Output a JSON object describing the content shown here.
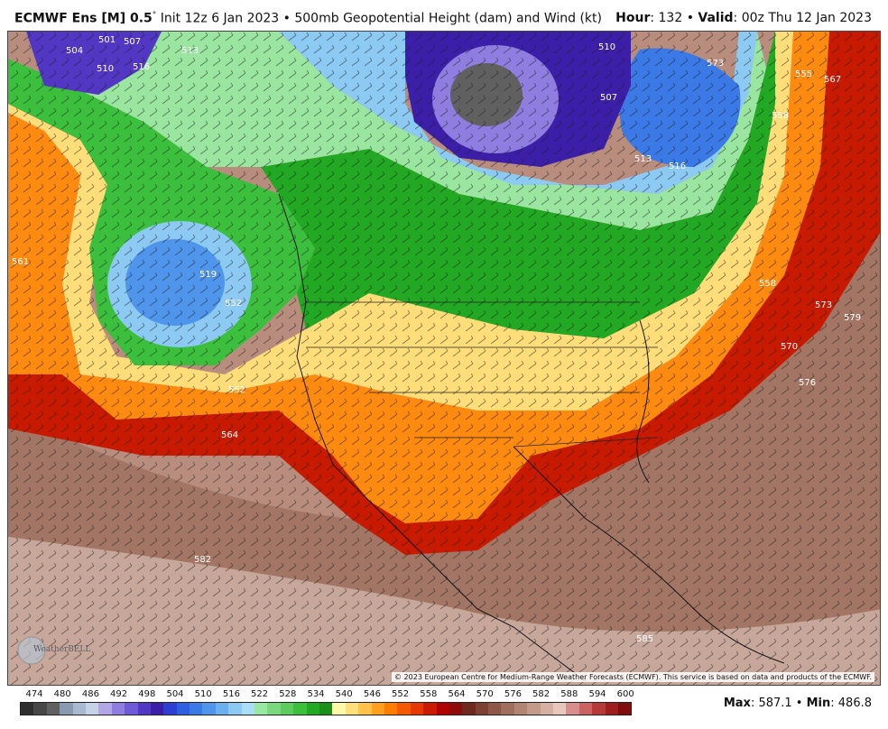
{
  "header": {
    "model": "ECMWF Ens [M] 0.5",
    "degree": "°",
    "init": " Init 12z 6 Jan 2023 • 500mb Geopotential Height (dam) and Wind (kt)",
    "hour_label": "Hour",
    "hour_value": ": 132 • ",
    "valid_label": "Valid",
    "valid_value": ": 00z Thu 12 Jan 2023"
  },
  "map": {
    "contour_labels": [
      "501",
      "507",
      "504",
      "510",
      "516",
      "513",
      "519",
      "552",
      "558",
      "561",
      "552",
      "564",
      "582",
      "585",
      "510",
      "507",
      "513",
      "516",
      "573",
      "567",
      "555",
      "570",
      "576",
      "573",
      "579",
      "558"
    ],
    "copyright": "© 2023 European Centre for Medium-Range Weather Forecasts (ECMWF). This service is based on data and products of the ECMWF.",
    "logo_text": "WeatherBELL"
  },
  "scale": {
    "labels": [
      "474",
      "480",
      "486",
      "492",
      "498",
      "504",
      "510",
      "516",
      "522",
      "528",
      "534",
      "540",
      "546",
      "552",
      "558",
      "564",
      "570",
      "576",
      "582",
      "588",
      "594",
      "600"
    ],
    "colors": [
      "#2e2e2e",
      "#474747",
      "#606060",
      "#8a9bb0",
      "#a9b9cf",
      "#c6d2e6",
      "#b2a6e4",
      "#8f7ee0",
      "#6f5ad6",
      "#5237c4",
      "#3c1fa8",
      "#2d3fd0",
      "#2d5fe0",
      "#3b7ae6",
      "#4f95ec",
      "#6cb0f0",
      "#8ccaf4",
      "#a9def6",
      "#98e8a4",
      "#7ad97e",
      "#5ccc5c",
      "#3cbf3c",
      "#22a822",
      "#1a8f1a",
      "#fff8a8",
      "#ffe07a",
      "#ffc24a",
      "#ffa020",
      "#ff7e00",
      "#f55a00",
      "#e63800",
      "#cc1a00",
      "#b00000",
      "#8f0a0a",
      "#6e2a1e",
      "#7e4234",
      "#8e5848",
      "#a06e5e",
      "#b28474",
      "#c49a8a",
      "#d6b0a2",
      "#e8c8bc",
      "#d98e8e",
      "#c96262",
      "#b63a3a",
      "#9c1e1e",
      "#7e0e0e"
    ]
  },
  "stats": {
    "max_label": "Max",
    "max_value": ": 587.1 • ",
    "min_label": "Min",
    "min_value": ": 486.8"
  }
}
